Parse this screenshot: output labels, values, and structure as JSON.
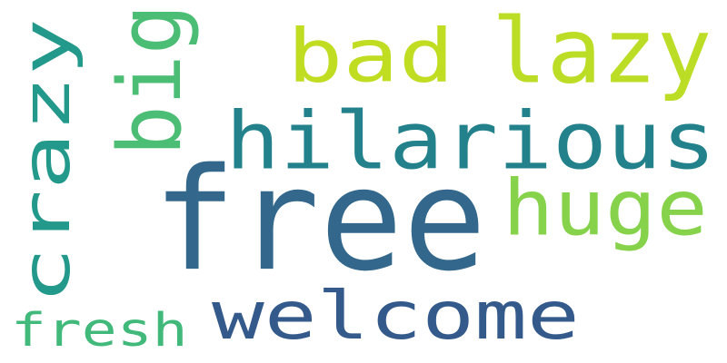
{
  "words": [
    {
      "id": "free",
      "text": "free",
      "color": "#33688c",
      "vertical": false
    },
    {
      "id": "hilarious",
      "text": "hilarious",
      "color": "#23818c",
      "vertical": false
    },
    {
      "id": "welcome",
      "text": "welcome",
      "color": "#345a8c",
      "vertical": false
    },
    {
      "id": "crazy",
      "text": "crazy",
      "color": "#23998c",
      "vertical": true
    },
    {
      "id": "lazy",
      "text": "lazy",
      "color": "#bcdd26",
      "vertical": false
    },
    {
      "id": "bad",
      "text": "bad",
      "color": "#c0dd22",
      "vertical": false
    },
    {
      "id": "huge",
      "text": "huge",
      "color": "#86d24a",
      "vertical": false
    },
    {
      "id": "big",
      "text": "big",
      "color": "#4cbd74",
      "vertical": true
    },
    {
      "id": "fresh",
      "text": "fresh",
      "color": "#40b97a",
      "vertical": false
    }
  ]
}
